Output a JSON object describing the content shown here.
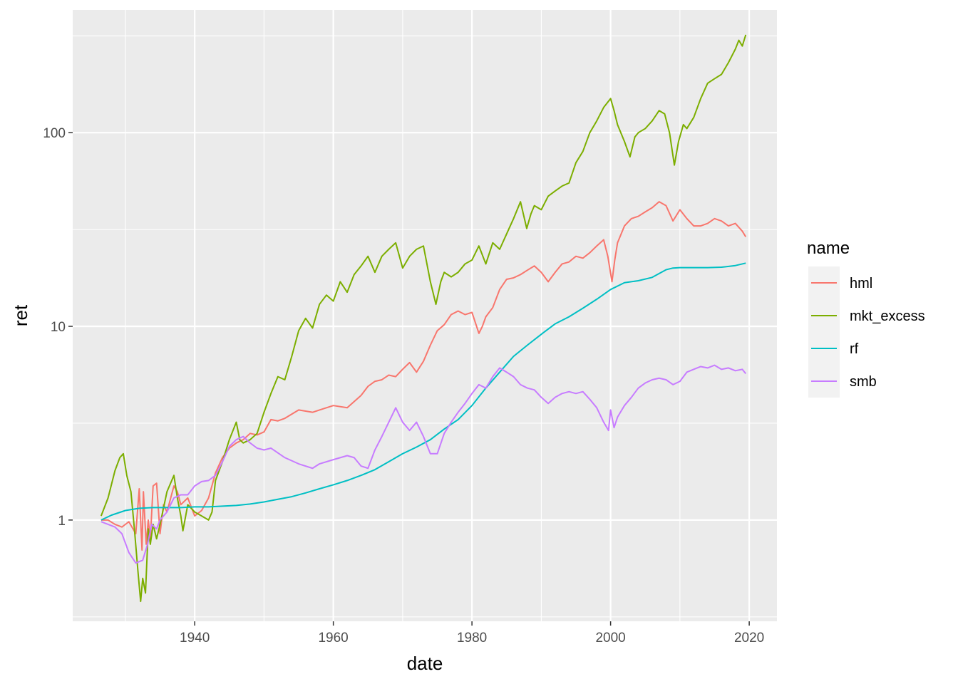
{
  "chart_data": {
    "type": "line",
    "title": "",
    "xlabel": "date",
    "ylabel": "ret",
    "y_scale": "log10",
    "xlim": [
      1922.4,
      2024.0
    ],
    "ylim": [
      0.3,
      430
    ],
    "x_ticks": [
      1940,
      1960,
      1980,
      2000,
      2020
    ],
    "x_tick_labels": [
      "1940",
      "1960",
      "1980",
      "2000",
      "2020"
    ],
    "y_ticks": [
      1,
      10,
      100
    ],
    "y_tick_labels": [
      "1",
      "10",
      "100"
    ],
    "grid": true,
    "panel_background": "#ebebeb",
    "legend": {
      "title": "name",
      "placement": "right"
    },
    "series": [
      {
        "name": "hml",
        "color": "#F8766D",
        "x": [
          1926.5,
          1927.5,
          1928.5,
          1929.5,
          1930.5,
          1931.5,
          1932.0,
          1932.4,
          1932.6,
          1933.0,
          1933.3,
          1933.6,
          1934.0,
          1934.5,
          1935.0,
          1935.5,
          1936.0,
          1937.0,
          1937.5,
          1938.0,
          1939.0,
          1940.0,
          1941.0,
          1942.0,
          1943.0,
          1944.0,
          1945.0,
          1946.0,
          1947.0,
          1948.0,
          1949.0,
          1950.0,
          1951.0,
          1952.0,
          1953.0,
          1955.0,
          1957.0,
          1958.0,
          1960.0,
          1962.0,
          1964.0,
          1965.0,
          1966.0,
          1967.0,
          1968.0,
          1969.0,
          1970.0,
          1971.0,
          1972.0,
          1973.0,
          1974.0,
          1975.0,
          1976.0,
          1977.0,
          1978.0,
          1979.0,
          1980.0,
          1981.0,
          1981.5,
          1982.0,
          1983.0,
          1984.0,
          1985.0,
          1986.0,
          1987.0,
          1988.0,
          1989.0,
          1990.0,
          1991.0,
          1992.0,
          1993.0,
          1994.0,
          1995.0,
          1996.0,
          1997.0,
          1998.0,
          1999.0,
          1999.6,
          2000.2,
          2000.6,
          2001.0,
          2002.0,
          2003.0,
          2004.0,
          2005.0,
          2006.0,
          2007.0,
          2008.0,
          2009.0,
          2010.0,
          2011.0,
          2012.0,
          2013.0,
          2014.0,
          2015.0,
          2016.0,
          2017.0,
          2018.0,
          2019.0,
          2019.5
        ],
        "y": [
          1.0,
          1.0,
          0.95,
          0.92,
          0.98,
          0.85,
          1.45,
          0.7,
          1.4,
          0.75,
          1.0,
          0.8,
          1.5,
          1.55,
          0.85,
          1.2,
          1.1,
          1.5,
          1.4,
          1.2,
          1.3,
          1.05,
          1.12,
          1.3,
          1.75,
          2.1,
          2.35,
          2.5,
          2.6,
          2.8,
          2.75,
          2.85,
          3.3,
          3.25,
          3.35,
          3.7,
          3.6,
          3.7,
          3.9,
          3.8,
          4.4,
          4.9,
          5.2,
          5.3,
          5.6,
          5.5,
          6.0,
          6.5,
          5.8,
          6.6,
          8.0,
          9.5,
          10.2,
          11.5,
          12.0,
          11.5,
          11.8,
          9.2,
          10.0,
          11.2,
          12.5,
          15.5,
          17.5,
          17.8,
          18.5,
          19.5,
          20.5,
          19.0,
          17.0,
          19.0,
          21.0,
          21.5,
          23.0,
          22.5,
          24.0,
          26.0,
          28.0,
          23.0,
          17.0,
          22.0,
          27.0,
          33.0,
          36.0,
          37.0,
          39.0,
          41.0,
          44.0,
          42.0,
          35.0,
          40.0,
          36.0,
          33.0,
          33.0,
          34.0,
          36.0,
          35.0,
          33.0,
          34.0,
          31.0,
          29.0
        ]
      },
      {
        "name": "mkt_excess",
        "color": "#7CAE00",
        "x": [
          1926.5,
          1927.5,
          1928.5,
          1929.2,
          1929.7,
          1930.2,
          1930.8,
          1931.3,
          1931.8,
          1932.2,
          1932.5,
          1932.9,
          1933.3,
          1933.6,
          1934.0,
          1934.5,
          1935.0,
          1936.0,
          1937.0,
          1937.5,
          1938.0,
          1938.3,
          1939.0,
          1940.0,
          1941.0,
          1942.0,
          1942.5,
          1943.0,
          1944.0,
          1945.0,
          1946.0,
          1946.5,
          1947.0,
          1948.0,
          1949.0,
          1950.0,
          1951.0,
          1952.0,
          1953.0,
          1954.0,
          1955.0,
          1956.0,
          1957.0,
          1958.0,
          1959.0,
          1960.0,
          1961.0,
          1962.0,
          1963.0,
          1964.0,
          1965.0,
          1966.0,
          1967.0,
          1968.0,
          1969.0,
          1970.0,
          1971.0,
          1972.0,
          1973.0,
          1974.0,
          1974.8,
          1975.5,
          1976.0,
          1977.0,
          1978.0,
          1979.0,
          1980.0,
          1981.0,
          1982.0,
          1983.0,
          1984.0,
          1985.0,
          1986.0,
          1987.0,
          1987.9,
          1988.5,
          1989.0,
          1990.0,
          1991.0,
          1992.0,
          1993.0,
          1994.0,
          1995.0,
          1996.0,
          1997.0,
          1998.0,
          1999.0,
          2000.0,
          2000.5,
          2001.0,
          2002.0,
          2002.8,
          2003.5,
          2004.0,
          2005.0,
          2006.0,
          2007.0,
          2007.8,
          2008.5,
          2009.2,
          2009.8,
          2010.5,
          2011.0,
          2012.0,
          2013.0,
          2014.0,
          2015.0,
          2016.0,
          2017.0,
          2018.0,
          2018.5,
          2019.0,
          2019.5
        ],
        "y": [
          1.05,
          1.3,
          1.8,
          2.1,
          2.2,
          1.7,
          1.4,
          0.9,
          0.55,
          0.38,
          0.5,
          0.42,
          0.9,
          0.75,
          0.95,
          0.8,
          0.95,
          1.4,
          1.7,
          1.3,
          1.05,
          0.88,
          1.2,
          1.1,
          1.05,
          1.0,
          1.1,
          1.6,
          2.0,
          2.6,
          3.2,
          2.6,
          2.5,
          2.6,
          2.8,
          3.6,
          4.5,
          5.5,
          5.3,
          7.0,
          9.5,
          11.0,
          9.8,
          13.0,
          14.5,
          13.5,
          17.0,
          15.0,
          18.5,
          20.5,
          23.0,
          19.0,
          23.0,
          25.0,
          27.0,
          20.0,
          23.0,
          25.0,
          26.0,
          17.0,
          13.0,
          17.0,
          19.0,
          18.0,
          19.0,
          21.0,
          22.0,
          26.0,
          21.0,
          27.0,
          25.0,
          30.0,
          36.0,
          44.0,
          32.0,
          38.0,
          42.0,
          40.0,
          47.0,
          50.0,
          53.0,
          55.0,
          70.0,
          80.0,
          100.0,
          115.0,
          135.0,
          150.0,
          130.0,
          110.0,
          90.0,
          75.0,
          95.0,
          100.0,
          105.0,
          115.0,
          130.0,
          125.0,
          100.0,
          68.0,
          90.0,
          110.0,
          105.0,
          120.0,
          150.0,
          180.0,
          190.0,
          200.0,
          230.0,
          270.0,
          300.0,
          280.0,
          320.0
        ]
      },
      {
        "name": "rf",
        "color": "#00BFC4",
        "x": [
          1926.5,
          1928.0,
          1930.0,
          1932.0,
          1934.0,
          1936.0,
          1938.0,
          1940.0,
          1942.0,
          1944.0,
          1946.0,
          1948.0,
          1950.0,
          1952.0,
          1954.0,
          1956.0,
          1958.0,
          1960.0,
          1962.0,
          1964.0,
          1966.0,
          1968.0,
          1970.0,
          1972.0,
          1974.0,
          1976.0,
          1978.0,
          1980.0,
          1982.0,
          1984.0,
          1986.0,
          1988.0,
          1990.0,
          1992.0,
          1994.0,
          1996.0,
          1998.0,
          2000.0,
          2002.0,
          2004.0,
          2006.0,
          2008.0,
          2009.0,
          2010.0,
          2012.0,
          2014.0,
          2016.0,
          2018.0,
          2019.5
        ],
        "y": [
          1.0,
          1.06,
          1.12,
          1.15,
          1.16,
          1.16,
          1.16,
          1.17,
          1.17,
          1.18,
          1.19,
          1.21,
          1.24,
          1.28,
          1.32,
          1.38,
          1.45,
          1.52,
          1.6,
          1.7,
          1.82,
          2.0,
          2.2,
          2.38,
          2.6,
          2.95,
          3.3,
          3.9,
          4.8,
          5.8,
          7.0,
          8.0,
          9.1,
          10.3,
          11.2,
          12.4,
          13.8,
          15.5,
          16.8,
          17.2,
          17.9,
          19.6,
          20.0,
          20.1,
          20.1,
          20.1,
          20.2,
          20.6,
          21.2
        ]
      },
      {
        "name": "smb",
        "color": "#C77CFF",
        "x": [
          1926.5,
          1927.5,
          1928.5,
          1929.5,
          1930.5,
          1931.5,
          1932.5,
          1933.2,
          1933.8,
          1934.5,
          1935.0,
          1936.0,
          1937.0,
          1938.0,
          1939.0,
          1940.0,
          1941.0,
          1942.0,
          1943.0,
          1944.0,
          1945.0,
          1946.0,
          1947.0,
          1948.0,
          1949.0,
          1950.0,
          1951.0,
          1953.0,
          1955.0,
          1957.0,
          1958.0,
          1960.0,
          1962.0,
          1963.0,
          1964.0,
          1965.0,
          1966.0,
          1967.0,
          1968.0,
          1969.0,
          1970.0,
          1971.0,
          1972.0,
          1973.0,
          1974.0,
          1975.0,
          1976.0,
          1977.0,
          1978.0,
          1979.0,
          1980.0,
          1981.0,
          1982.0,
          1983.0,
          1984.0,
          1985.0,
          1986.0,
          1987.0,
          1988.0,
          1989.0,
          1990.0,
          1991.0,
          1992.0,
          1993.0,
          1994.0,
          1995.0,
          1996.0,
          1997.0,
          1998.0,
          1999.0,
          1999.7,
          2000.0,
          2000.5,
          2001.0,
          2002.0,
          2003.0,
          2004.0,
          2005.0,
          2006.0,
          2007.0,
          2008.0,
          2009.0,
          2010.0,
          2011.0,
          2012.0,
          2013.0,
          2014.0,
          2015.0,
          2016.0,
          2017.0,
          2018.0,
          2019.0,
          2019.5
        ],
        "y": [
          0.98,
          0.95,
          0.92,
          0.85,
          0.68,
          0.6,
          0.62,
          0.75,
          0.95,
          0.9,
          1.0,
          1.1,
          1.3,
          1.35,
          1.35,
          1.5,
          1.58,
          1.6,
          1.7,
          2.0,
          2.4,
          2.6,
          2.7,
          2.5,
          2.35,
          2.3,
          2.35,
          2.1,
          1.95,
          1.85,
          1.95,
          2.05,
          2.15,
          2.1,
          1.9,
          1.85,
          2.3,
          2.7,
          3.2,
          3.8,
          3.2,
          2.9,
          3.2,
          2.7,
          2.2,
          2.2,
          2.8,
          3.2,
          3.6,
          4.0,
          4.5,
          5.0,
          4.8,
          5.5,
          6.1,
          5.8,
          5.5,
          5.0,
          4.8,
          4.7,
          4.3,
          4.0,
          4.3,
          4.5,
          4.6,
          4.5,
          4.6,
          4.2,
          3.8,
          3.2,
          2.9,
          3.7,
          3.0,
          3.4,
          3.9,
          4.3,
          4.8,
          5.1,
          5.3,
          5.4,
          5.3,
          5.0,
          5.2,
          5.8,
          6.0,
          6.2,
          6.1,
          6.3,
          6.0,
          6.1,
          5.9,
          6.0,
          5.7
        ]
      }
    ]
  }
}
